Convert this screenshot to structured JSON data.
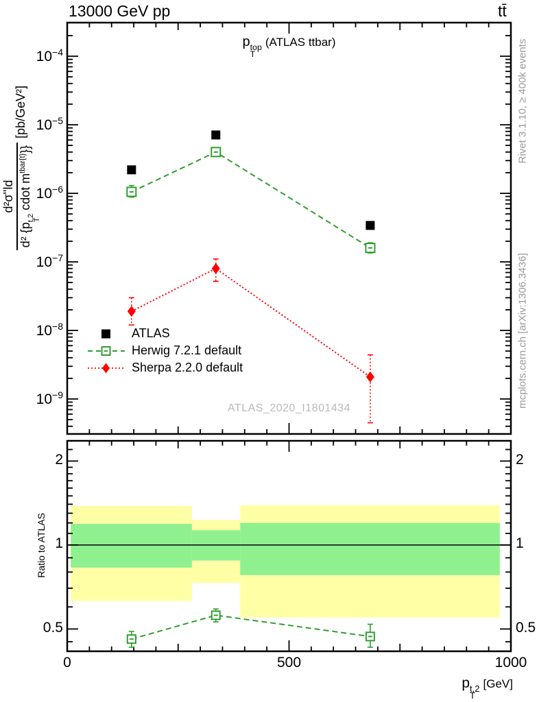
{
  "header": {
    "left": "13000 GeV pp",
    "right": "tt̄"
  },
  "panel_title": {
    "base": "p",
    "sup": "top",
    "sub": "T",
    "rest": "(ATLAS ttbar)"
  },
  "ylabel": {
    "numerator": "d²σ''ld",
    "d1": "d² {p",
    "d_sub": "T",
    "d_sup1": "t,2",
    "d2": " cdot m",
    "d_sup2": "tbar{t}",
    "d3": "}}",
    "units": "[pb/GeV²]"
  },
  "right_margin": {
    "top": "Rivet 3.1.10, ≥ 400k events",
    "bottom": "mcplots.cern.ch [arXiv:1306.3436]"
  },
  "watermark": "ATLAS_2020_I1801434",
  "legend": [
    {
      "label": "ATLAS",
      "series": "atlas"
    },
    {
      "label": "Herwig 7.2.1 default",
      "series": "herwig"
    },
    {
      "label": "Sherpa 2.2.0 default",
      "series": "sherpa"
    }
  ],
  "ratio_ylabel": "Ratio to ATLAS",
  "xlabel": {
    "base": "p",
    "sup": "t,2",
    "sub": "T",
    "rest": "[GeV]"
  },
  "colors": {
    "atlas": "#000000",
    "herwig": "#2e9e2e",
    "sherpa": "#ff0000",
    "band_yellow": "#ffffa6",
    "band_green": "#8ff08f",
    "gray_text": "#999999",
    "watermark": "#b9b9b9"
  },
  "chart_data": {
    "type": "line",
    "title": "pT^top (ATLAS ttbar)",
    "xlabel": "pT^{t,2} [GeV]",
    "ylabel": "d²σ''ld / d²{pT^{t,2} cdot m^{tbar{t}}} [pb/GeV²]",
    "main": {
      "yscale": "log",
      "ylim": [
        3.2e-10,
        0.00031
      ],
      "yexps": [
        -4,
        -5,
        -6,
        -7,
        -8,
        -9
      ],
      "xlim": [
        0,
        1000
      ],
      "xticks": [
        0,
        500,
        1000
      ],
      "xminor_step": 50,
      "series": [
        {
          "name": "ATLAS",
          "marker": "filled-square",
          "x": [
            145,
            335,
            683
          ],
          "y": [
            2.2e-06,
            7.1e-06,
            3.4e-07
          ]
        },
        {
          "name": "Herwig 7.2.1 default",
          "marker": "open-square",
          "line": "dashed",
          "x": [
            145,
            335,
            683
          ],
          "y": [
            1.05e-06,
            4e-06,
            1.6e-07
          ],
          "ylo": [
            8.8e-07,
            3.5e-06,
            1.35e-07
          ],
          "yhi": [
            1.3e-06,
            4.6e-06,
            1.9e-07
          ]
        },
        {
          "name": "Sherpa 2.2.0 default",
          "marker": "filled-diamond",
          "line": "dotted",
          "x": [
            145,
            335,
            683
          ],
          "y": [
            1.9e-08,
            8e-08,
            2.1e-09
          ],
          "ylo": [
            1.2e-08,
            5.2e-08,
            4.5e-10
          ],
          "yhi": [
            3e-08,
            1.1e-07,
            4.4e-09
          ]
        }
      ]
    },
    "ratio": {
      "yscale": "log",
      "ylim": [
        0.42,
        2.36
      ],
      "yticks": [
        2,
        1,
        0.5
      ],
      "yminors": [
        0.45,
        0.6,
        0.7,
        0.8,
        0.9,
        1.1,
        1.2,
        1.3,
        1.4,
        1.5,
        1.6,
        1.7,
        1.8,
        1.9,
        2.2
      ],
      "reference_line": 1,
      "bands": [
        {
          "x0": 8,
          "x1": 281,
          "yellow": [
            0.63,
            1.38
          ],
          "green": [
            0.83,
            1.19
          ]
        },
        {
          "x0": 281,
          "x1": 390,
          "yellow": [
            0.73,
            1.23
          ],
          "green": [
            0.88,
            1.13
          ]
        },
        {
          "x0": 390,
          "x1": 975,
          "yellow": [
            0.55,
            1.39
          ],
          "green": [
            0.78,
            1.2
          ]
        }
      ],
      "herwig": {
        "x": [
          145,
          335,
          683
        ],
        "y": [
          0.46,
          0.56,
          0.47
        ],
        "ylo": [
          0.43,
          0.53,
          0.43
        ],
        "yhi": [
          0.49,
          0.59,
          0.52
        ]
      }
    }
  }
}
